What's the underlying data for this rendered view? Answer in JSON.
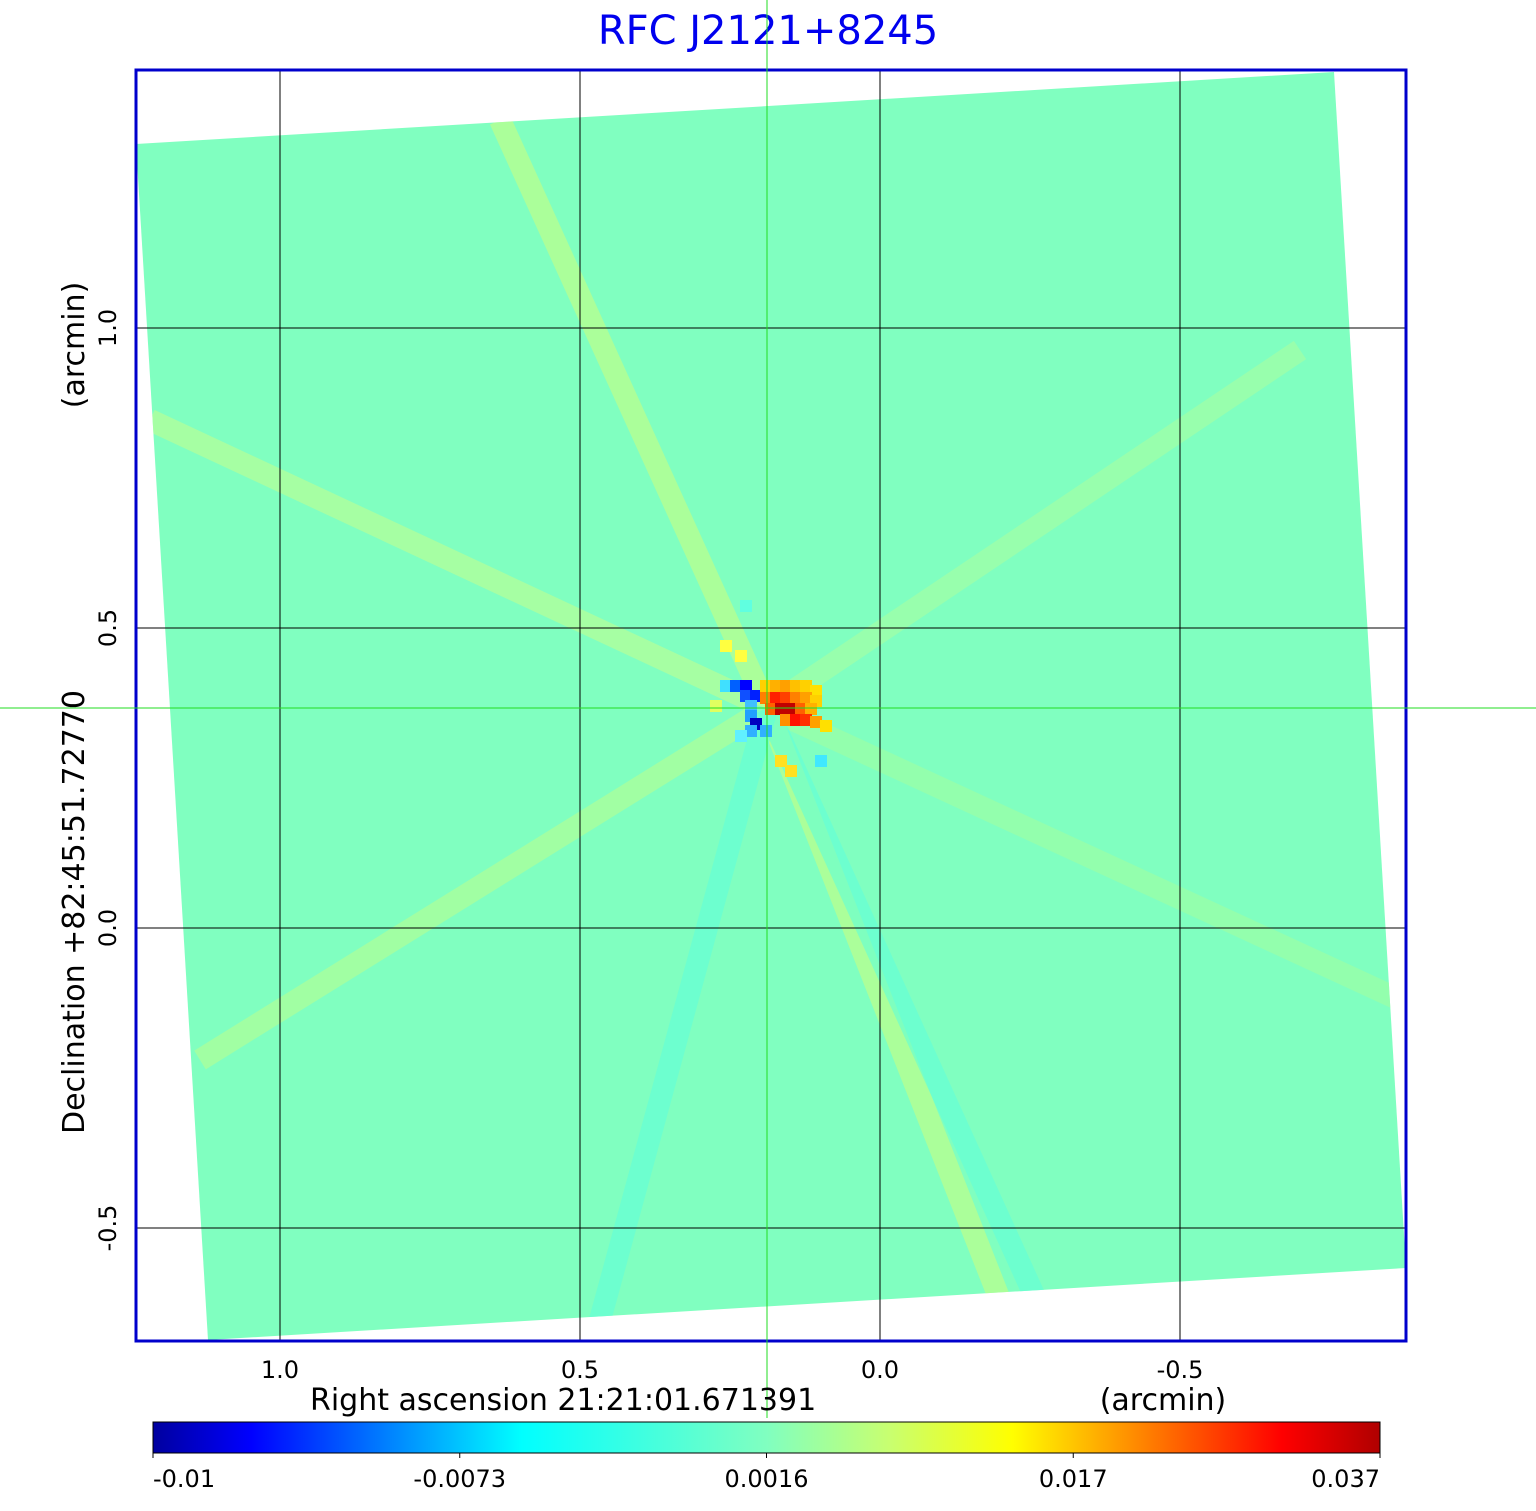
{
  "chart_data": {
    "type": "heatmap",
    "title": "RFC J2121+8245",
    "xlabel": "Right ascension  21:21:01.671391",
    "xunit": "(arcmin)",
    "ylabel": "Declination  +82:45:51.72770",
    "yunit": "(arcmin)",
    "x_ticks": [
      1.0,
      0.5,
      0.0,
      -0.5
    ],
    "x_tick_labels": [
      "1.0",
      "0.5",
      "0.0",
      "-0.5"
    ],
    "y_ticks": [
      1.0,
      0.5,
      0.0,
      -0.5
    ],
    "y_tick_labels": [
      "1.0",
      "0.5",
      "0.0",
      "-0.5"
    ],
    "xlim": [
      1.24,
      -0.88
    ],
    "ylim": [
      -0.69,
      1.43
    ],
    "grid": true,
    "crosshair": {
      "x": 0.19,
      "y": 0.37
    },
    "colorbar": {
      "colormap": "jet",
      "range": [
        -0.01,
        0.037
      ],
      "tick_labels": [
        "-0.01",
        "-0.0073",
        "0.0016",
        "0.017",
        "0.037"
      ]
    },
    "peak_value_approx": 0.037,
    "min_value_approx": -0.01
  },
  "colors": {
    "title": "#0000ee",
    "frame": "#0000cc",
    "background_map": "#80ffc0",
    "crosshair": "#22dd22",
    "grid": "#000000"
  }
}
